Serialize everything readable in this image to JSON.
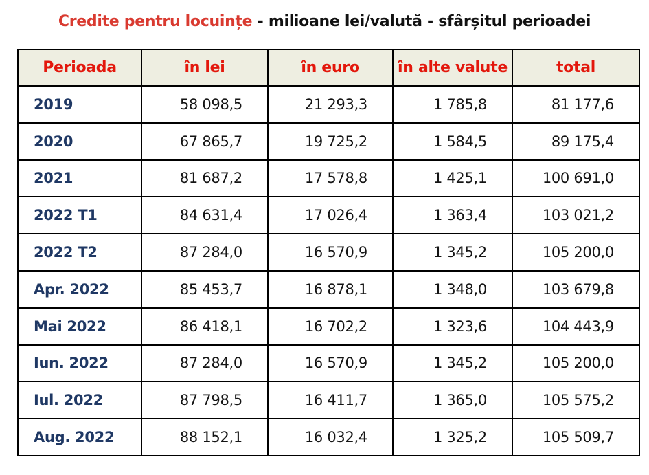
{
  "title": {
    "highlight": "Credite pentru locuințe",
    "rest": " - milioane lei/valută - sfârșitul perioadei"
  },
  "colors": {
    "title_red": "#d93a30",
    "header_red": "#e3170c",
    "header_bg": "#eeeee1",
    "period_navy": "#1f3864",
    "border_black": "#000000"
  },
  "table": {
    "columns": [
      "Perioada",
      "în lei",
      "în euro",
      "în alte valute",
      "total"
    ],
    "rows": [
      {
        "period": "2019",
        "lei": "58 098,5",
        "euro": "21 293,3",
        "alte": "1 785,8",
        "total": "81 177,6"
      },
      {
        "period": "2020",
        "lei": "67 865,7",
        "euro": "19 725,2",
        "alte": "1 584,5",
        "total": "89 175,4"
      },
      {
        "period": "2021",
        "lei": "81 687,2",
        "euro": "17 578,8",
        "alte": "1 425,1",
        "total": "100 691,0"
      },
      {
        "period": "2022 T1",
        "lei": "84 631,4",
        "euro": "17 026,4",
        "alte": "1 363,4",
        "total": "103 021,2"
      },
      {
        "period": "2022 T2",
        "lei": "87 284,0",
        "euro": "16 570,9",
        "alte": "1 345,2",
        "total": "105 200,0"
      },
      {
        "period": "Apr. 2022",
        "lei": "85 453,7",
        "euro": "16 878,1",
        "alte": "1 348,0",
        "total": "103 679,8"
      },
      {
        "period": "Mai 2022",
        "lei": "86 418,1",
        "euro": "16 702,2",
        "alte": "1 323,6",
        "total": "104 443,9"
      },
      {
        "period": "Iun. 2022",
        "lei": "87 284,0",
        "euro": "16 570,9",
        "alte": "1 345,2",
        "total": "105 200,0"
      },
      {
        "period": "Iul. 2022",
        "lei": "87 798,5",
        "euro": "16 411,7",
        "alte": "1 365,0",
        "total": "105 575,2"
      },
      {
        "period": "Aug. 2022",
        "lei": "88 152,1",
        "euro": "16 032,4",
        "alte": "1 325,2",
        "total": "105 509,7"
      }
    ]
  },
  "chart_data": {
    "type": "table",
    "title": "Credite pentru locuințe - milioane lei/valută - sfârșitul perioadei",
    "columns": [
      "Perioada",
      "în lei",
      "în euro",
      "în alte valute",
      "total"
    ],
    "rows": [
      [
        "2019",
        58098.5,
        21293.3,
        1785.8,
        81177.6
      ],
      [
        "2020",
        67865.7,
        19725.2,
        1584.5,
        89175.4
      ],
      [
        "2021",
        81687.2,
        17578.8,
        1425.1,
        100691.0
      ],
      [
        "2022 T1",
        84631.4,
        17026.4,
        1363.4,
        103021.2
      ],
      [
        "2022 T2",
        87284.0,
        16570.9,
        1345.2,
        105200.0
      ],
      [
        "Apr. 2022",
        85453.7,
        16878.1,
        1348.0,
        103679.8
      ],
      [
        "Mai 2022",
        86418.1,
        16702.2,
        1323.6,
        104443.9
      ],
      [
        "Iun. 2022",
        87284.0,
        16570.9,
        1345.2,
        105200.0
      ],
      [
        "Iul. 2022",
        87798.5,
        16411.7,
        1365.0,
        105575.2
      ],
      [
        "Aug. 2022",
        88152.1,
        16032.4,
        1325.2,
        105509.7
      ]
    ],
    "units": "milioane lei/valută",
    "note": "valori la sfârșitul perioadei"
  }
}
